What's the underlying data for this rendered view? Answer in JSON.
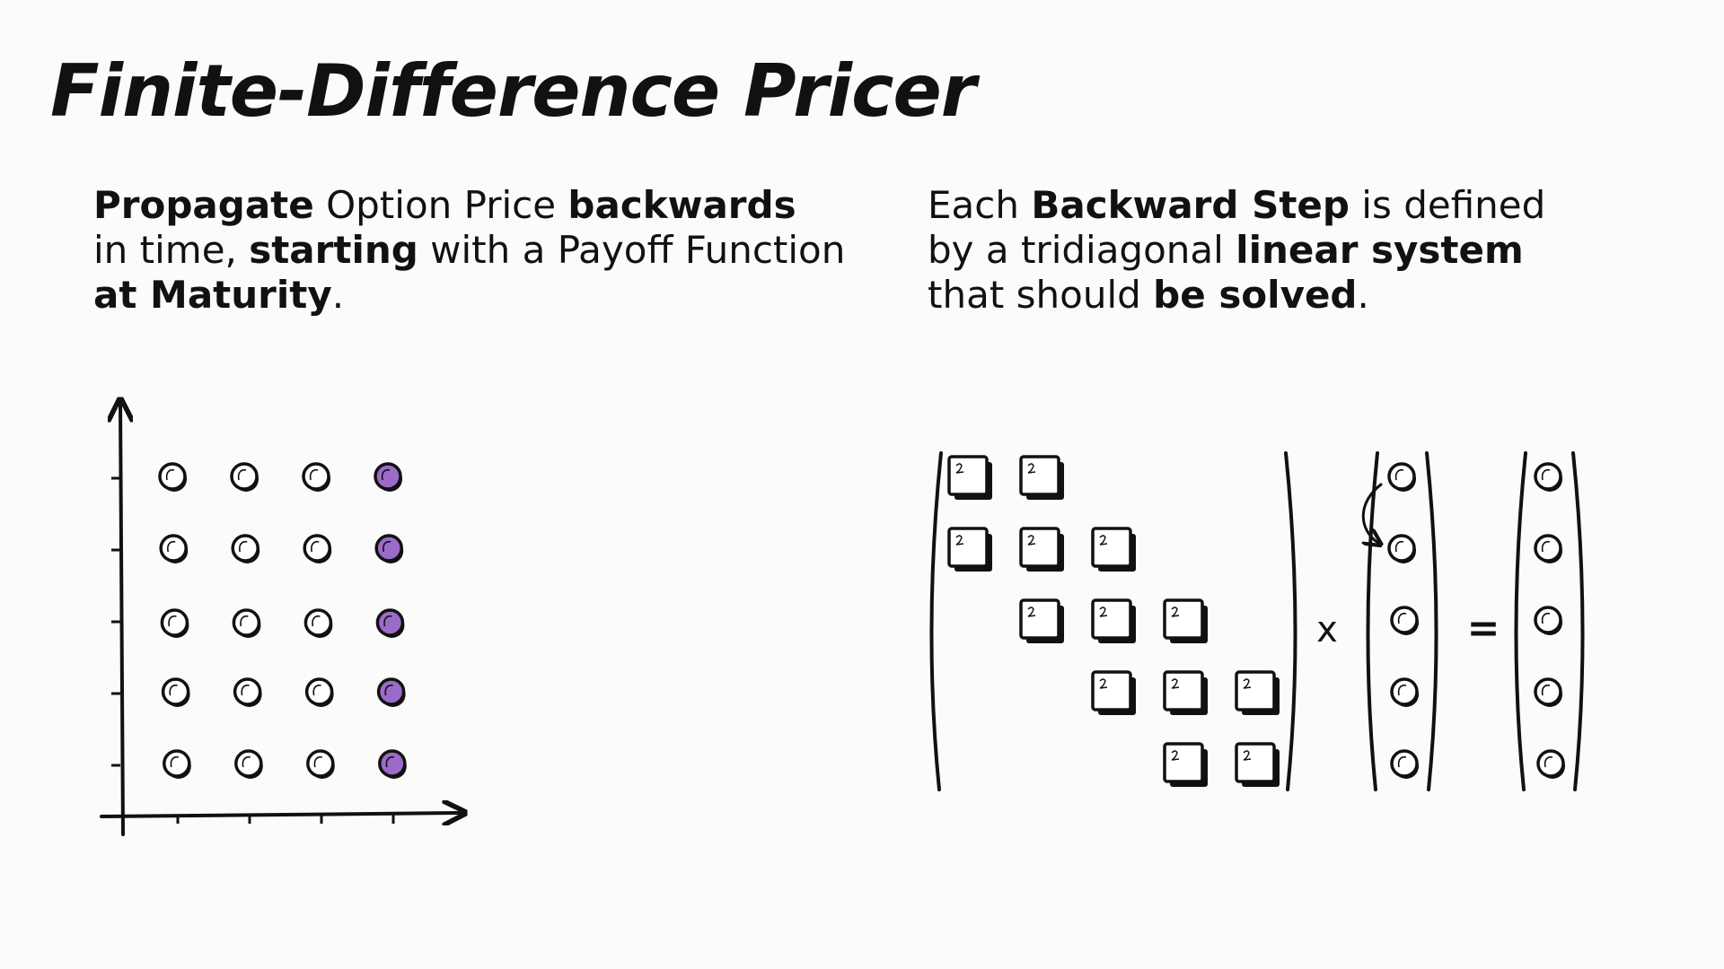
{
  "slide": {
    "title": "Finite-Difference Pricer"
  },
  "left_text": {
    "lines": [
      [
        {
          "text": "Propagate",
          "bold": true
        },
        {
          "text": " Option Price ",
          "bold": false
        },
        {
          "text": "backwards",
          "bold": true
        }
      ],
      [
        {
          "text": "in time, ",
          "bold": false
        },
        {
          "text": "starting",
          "bold": true
        },
        {
          "text": " with a Payoff Function",
          "bold": false
        }
      ],
      [
        {
          "text": "at Maturity",
          "bold": true
        },
        {
          "text": ".",
          "bold": false
        }
      ]
    ]
  },
  "right_text": {
    "lines": [
      [
        {
          "text": "Each ",
          "bold": false
        },
        {
          "text": "Backward Step",
          "bold": true
        },
        {
          "text": " is defined",
          "bold": false
        }
      ],
      [
        {
          "text": "by a tridiagonal ",
          "bold": false
        },
        {
          "text": "linear system",
          "bold": true
        }
      ],
      [
        {
          "text": "that should ",
          "bold": false
        },
        {
          "text": "be solved",
          "bold": true
        },
        {
          "text": ".",
          "bold": false
        }
      ]
    ]
  },
  "grid": {
    "rows": 5,
    "cols": 4,
    "highlight_col": 3,
    "node_fill": "#ffffff",
    "highlight_fill": "#9b6bc9"
  },
  "system": {
    "size": 5,
    "bandwidth": 1,
    "multiply_symbol": "x",
    "equals_symbol": "=",
    "cell_fill": "#ffffff",
    "node_fill": "#ffffff"
  },
  "colors": {
    "ink": "#111111",
    "background": "#fbfbfb",
    "accent": "#9b6bc9"
  }
}
